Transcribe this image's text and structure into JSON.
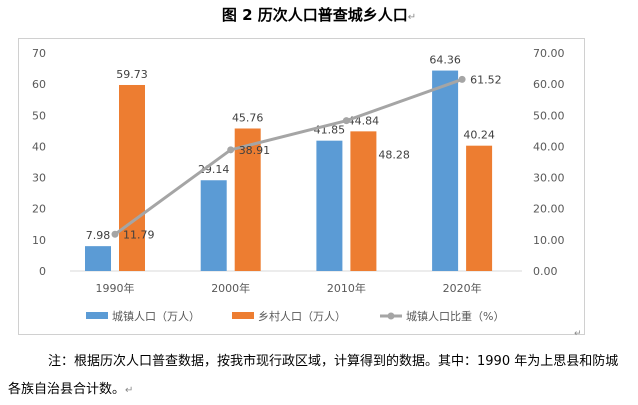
{
  "title": "图 2  历次人口普查城乡人口",
  "note": "注：根据历次人口普查数据，按我市现行政区域，计算得到的数据。其中：1990 年为上思县和防城各族自治县合计数。",
  "chart_data": {
    "type": "bar",
    "title": "图 2  历次人口普查城乡人口",
    "categories": [
      "1990年",
      "2000年",
      "2010年",
      "2020年"
    ],
    "series": [
      {
        "name": "城镇人口（万人）",
        "type": "bar",
        "axis": "left",
        "color": "#5b9bd5",
        "values": [
          7.98,
          29.14,
          41.85,
          64.36
        ]
      },
      {
        "name": "乡村人口（万人）",
        "type": "bar",
        "axis": "left",
        "color": "#ed7d31",
        "values": [
          59.73,
          45.76,
          44.84,
          40.24
        ]
      },
      {
        "name": "城镇人口比重（%）",
        "type": "line",
        "axis": "right",
        "color": "#a5a5a5",
        "values": [
          11.79,
          38.91,
          48.28,
          61.52
        ]
      }
    ],
    "ylim": [
      0,
      70
    ],
    "y2lim": [
      0,
      70
    ],
    "yticks": [
      "0",
      "10",
      "20",
      "30",
      "40",
      "50",
      "60",
      "70"
    ],
    "y2ticks": [
      "0.00",
      "10.00",
      "20.00",
      "30.00",
      "40.00",
      "50.00",
      "60.00",
      "70.00"
    ],
    "grid": false,
    "legend": "bottom"
  }
}
